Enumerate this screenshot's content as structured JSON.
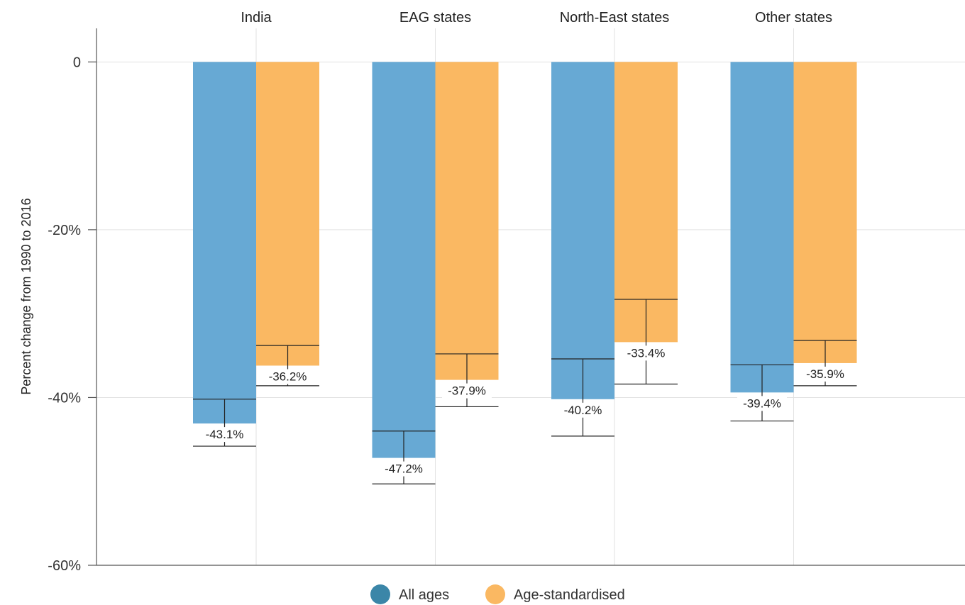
{
  "chart_data": {
    "type": "bar",
    "categories": [
      "India",
      "EAG states",
      "North-East states",
      "Other states"
    ],
    "series": [
      {
        "name": "All ages",
        "color": "#67a9d4",
        "legend_color": "#3b86a8",
        "values": [
          -43.1,
          -47.2,
          -40.2,
          -39.4
        ],
        "labels": [
          "-43.1%",
          "-47.2%",
          "-40.2%",
          "-39.4%"
        ],
        "error_low": [
          -45.8,
          -50.3,
          -44.6,
          -42.8
        ],
        "error_high": [
          -40.2,
          -44.0,
          -35.4,
          -36.1
        ]
      },
      {
        "name": "Age-standardised",
        "color": "#fab862",
        "legend_color": "#fab862",
        "values": [
          -36.2,
          -37.9,
          -33.4,
          -35.9
        ],
        "labels": [
          "-36.2%",
          "-37.9%",
          "-33.4%",
          "-35.9%"
        ],
        "error_low": [
          -38.6,
          -41.1,
          -38.4,
          -38.6
        ],
        "error_high": [
          -33.8,
          -34.8,
          -28.3,
          -33.2
        ]
      }
    ],
    "ylabel": "Percent change from 1990 to 2016",
    "ylim": [
      -60,
      4
    ],
    "yticks": [
      0,
      -20,
      -40,
      -60
    ],
    "ytick_labels": [
      "0",
      "-20%",
      "-40%",
      "-60%"
    ],
    "grid": true,
    "legend_position": "bottom"
  }
}
